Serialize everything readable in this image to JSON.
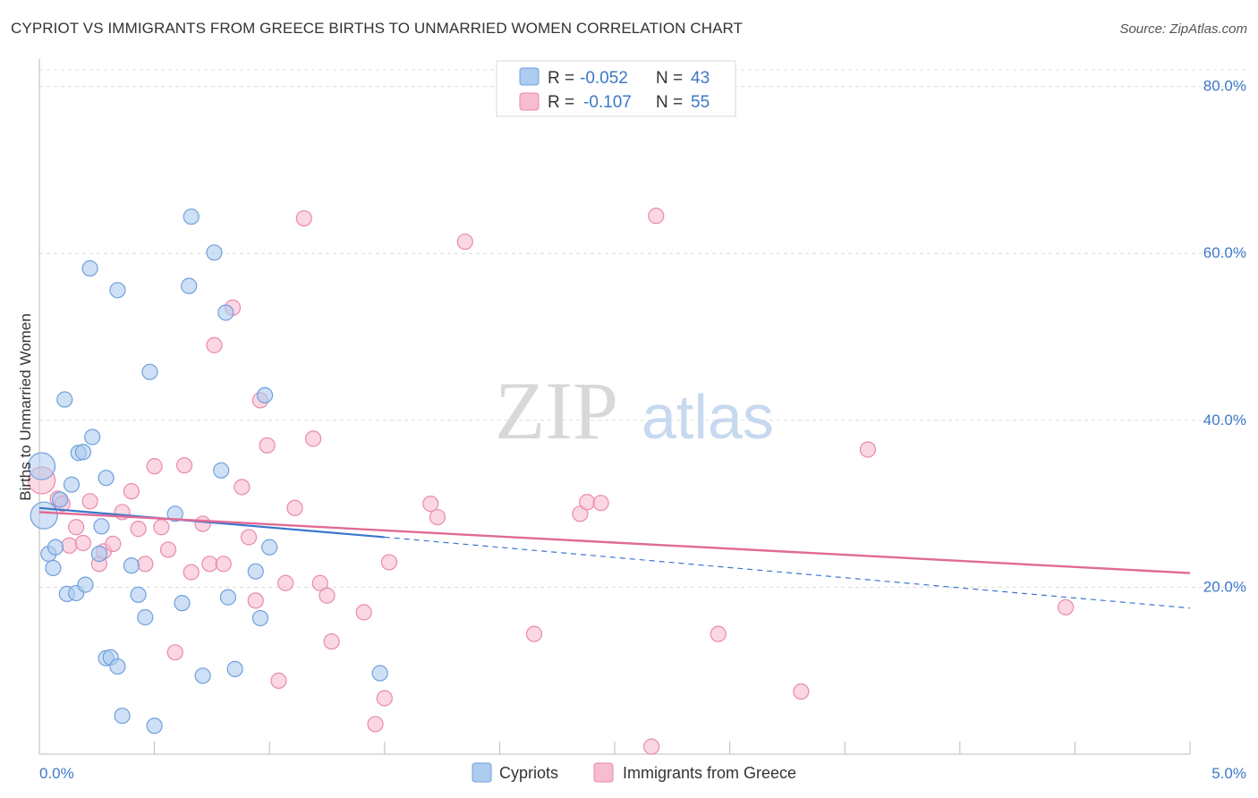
{
  "title": "CYPRIOT VS IMMIGRANTS FROM GREECE BIRTHS TO UNMARRIED WOMEN CORRELATION CHART",
  "source": "Source: ZipAtlas.com",
  "watermark": {
    "part1": "ZIP",
    "part2": "atlas"
  },
  "legend": {
    "rows": [
      {
        "r_label": "R =",
        "r_value": "-0.052",
        "n_label": "N =",
        "n_value": "43",
        "color": "#aecbf0"
      },
      {
        "r_label": "R =",
        "r_value": "-0.107",
        "n_label": "N =",
        "n_value": "55",
        "color": "#f7bcd0"
      }
    ]
  },
  "bottom_legend": [
    "Cypriots",
    "Immigrants from Greece"
  ],
  "colors": {
    "cypriots_fill": "#aecbf0",
    "cypriots_stroke": "#6fa0dc",
    "cypriots_line": "#3a76cc",
    "greece_fill": "#f7bcd0",
    "greece_stroke": "#e98aaa",
    "greece_line": "#e06a95",
    "accent": "#3d78c6"
  },
  "chart_data": {
    "type": "scatter",
    "title": "CYPRIOT VS IMMIGRANTS FROM GREECE BIRTHS TO UNMARRIED WOMEN CORRELATION CHART",
    "xlabel": "",
    "ylabel": "Births to Unmarried Women",
    "xlim": [
      0,
      5
    ],
    "ylim": [
      0,
      82
    ],
    "x_tick_labels": [
      {
        "value": 0,
        "label": "0.0%"
      },
      {
        "value": 5,
        "label": "5.0%"
      }
    ],
    "y_tick_labels": [
      {
        "value": 20,
        "label": "20.0%"
      },
      {
        "value": 40,
        "label": "40.0%"
      },
      {
        "value": 60,
        "label": "60.0%"
      },
      {
        "value": 80,
        "label": "80.0%"
      }
    ],
    "grid": true,
    "legend_position": "top-center",
    "series": [
      {
        "name": "Cypriots",
        "R": -0.052,
        "N": 43,
        "trend": {
          "x_start": 0,
          "y_start": 29.5,
          "x_solid_end": 1.5,
          "y_solid_end": 26.0,
          "x_end": 5,
          "y_end": 17.5
        },
        "points": [
          {
            "x": 0.01,
            "y": 34.5,
            "big": true
          },
          {
            "x": 0.02,
            "y": 28.6,
            "big": true
          },
          {
            "x": 0.04,
            "y": 24.0
          },
          {
            "x": 0.06,
            "y": 22.3
          },
          {
            "x": 0.07,
            "y": 24.8
          },
          {
            "x": 0.09,
            "y": 30.5
          },
          {
            "x": 0.11,
            "y": 42.5
          },
          {
            "x": 0.12,
            "y": 19.2
          },
          {
            "x": 0.14,
            "y": 32.3
          },
          {
            "x": 0.16,
            "y": 19.3
          },
          {
            "x": 0.17,
            "y": 36.1
          },
          {
            "x": 0.19,
            "y": 36.2
          },
          {
            "x": 0.2,
            "y": 20.3
          },
          {
            "x": 0.22,
            "y": 58.2
          },
          {
            "x": 0.23,
            "y": 38.0
          },
          {
            "x": 0.26,
            "y": 24.0
          },
          {
            "x": 0.27,
            "y": 27.3
          },
          {
            "x": 0.29,
            "y": 33.1
          },
          {
            "x": 0.29,
            "y": 11.5
          },
          {
            "x": 0.31,
            "y": 11.6
          },
          {
            "x": 0.34,
            "y": 10.5
          },
          {
            "x": 0.34,
            "y": 55.6
          },
          {
            "x": 0.36,
            "y": 4.6
          },
          {
            "x": 0.4,
            "y": 22.6
          },
          {
            "x": 0.43,
            "y": 19.1
          },
          {
            "x": 0.46,
            "y": 16.4
          },
          {
            "x": 0.48,
            "y": 45.8
          },
          {
            "x": 0.5,
            "y": 3.4
          },
          {
            "x": 0.59,
            "y": 28.8
          },
          {
            "x": 0.62,
            "y": 18.1
          },
          {
            "x": 0.65,
            "y": 56.1
          },
          {
            "x": 0.66,
            "y": 64.4
          },
          {
            "x": 0.71,
            "y": 9.4
          },
          {
            "x": 0.76,
            "y": 60.1
          },
          {
            "x": 0.79,
            "y": 34.0
          },
          {
            "x": 0.81,
            "y": 52.9
          },
          {
            "x": 0.82,
            "y": 18.8
          },
          {
            "x": 0.85,
            "y": 10.2
          },
          {
            "x": 0.94,
            "y": 21.9
          },
          {
            "x": 0.96,
            "y": 16.3
          },
          {
            "x": 0.98,
            "y": 43.0
          },
          {
            "x": 1.0,
            "y": 24.8
          },
          {
            "x": 1.48,
            "y": 9.7
          }
        ]
      },
      {
        "name": "Immigrants from Greece",
        "R": -0.107,
        "N": 55,
        "trend": {
          "x_start": 0,
          "y_start": 29.0,
          "x_end": 5,
          "y_end": 21.7
        },
        "points": [
          {
            "x": 0.01,
            "y": 32.8,
            "big": true
          },
          {
            "x": 0.08,
            "y": 30.6
          },
          {
            "x": 0.1,
            "y": 30.0
          },
          {
            "x": 0.13,
            "y": 25.0
          },
          {
            "x": 0.16,
            "y": 27.2
          },
          {
            "x": 0.19,
            "y": 25.3
          },
          {
            "x": 0.22,
            "y": 30.3
          },
          {
            "x": 0.26,
            "y": 22.8
          },
          {
            "x": 0.28,
            "y": 24.3
          },
          {
            "x": 0.32,
            "y": 25.2
          },
          {
            "x": 0.36,
            "y": 29.0
          },
          {
            "x": 0.4,
            "y": 31.5
          },
          {
            "x": 0.43,
            "y": 27.0
          },
          {
            "x": 0.46,
            "y": 22.8
          },
          {
            "x": 0.5,
            "y": 34.5
          },
          {
            "x": 0.53,
            "y": 27.2
          },
          {
            "x": 0.56,
            "y": 24.5
          },
          {
            "x": 0.59,
            "y": 12.2
          },
          {
            "x": 0.63,
            "y": 34.6
          },
          {
            "x": 0.66,
            "y": 21.8
          },
          {
            "x": 0.71,
            "y": 27.6
          },
          {
            "x": 0.74,
            "y": 22.8
          },
          {
            "x": 0.76,
            "y": 49.0
          },
          {
            "x": 0.8,
            "y": 22.8
          },
          {
            "x": 0.84,
            "y": 53.5
          },
          {
            "x": 0.88,
            "y": 32.0
          },
          {
            "x": 0.91,
            "y": 26.0
          },
          {
            "x": 0.94,
            "y": 18.4
          },
          {
            "x": 0.96,
            "y": 42.4
          },
          {
            "x": 0.99,
            "y": 37.0
          },
          {
            "x": 1.04,
            "y": 8.8
          },
          {
            "x": 1.07,
            "y": 20.5
          },
          {
            "x": 1.11,
            "y": 29.5
          },
          {
            "x": 1.15,
            "y": 64.2
          },
          {
            "x": 1.19,
            "y": 37.8
          },
          {
            "x": 1.22,
            "y": 20.5
          },
          {
            "x": 1.25,
            "y": 19.0
          },
          {
            "x": 1.27,
            "y": 13.5
          },
          {
            "x": 1.41,
            "y": 17.0
          },
          {
            "x": 1.46,
            "y": 3.6
          },
          {
            "x": 1.5,
            "y": 6.7
          },
          {
            "x": 1.52,
            "y": 23.0
          },
          {
            "x": 1.7,
            "y": 30.0
          },
          {
            "x": 1.73,
            "y": 28.4
          },
          {
            "x": 1.85,
            "y": 61.4
          },
          {
            "x": 2.15,
            "y": 14.4
          },
          {
            "x": 2.35,
            "y": 28.8
          },
          {
            "x": 2.38,
            "y": 30.2
          },
          {
            "x": 2.44,
            "y": 30.1
          },
          {
            "x": 2.66,
            "y": 0.9
          },
          {
            "x": 2.68,
            "y": 64.5
          },
          {
            "x": 2.95,
            "y": 14.4
          },
          {
            "x": 3.31,
            "y": 7.5
          },
          {
            "x": 3.6,
            "y": 36.5
          },
          {
            "x": 4.46,
            "y": 17.6
          }
        ]
      }
    ]
  }
}
